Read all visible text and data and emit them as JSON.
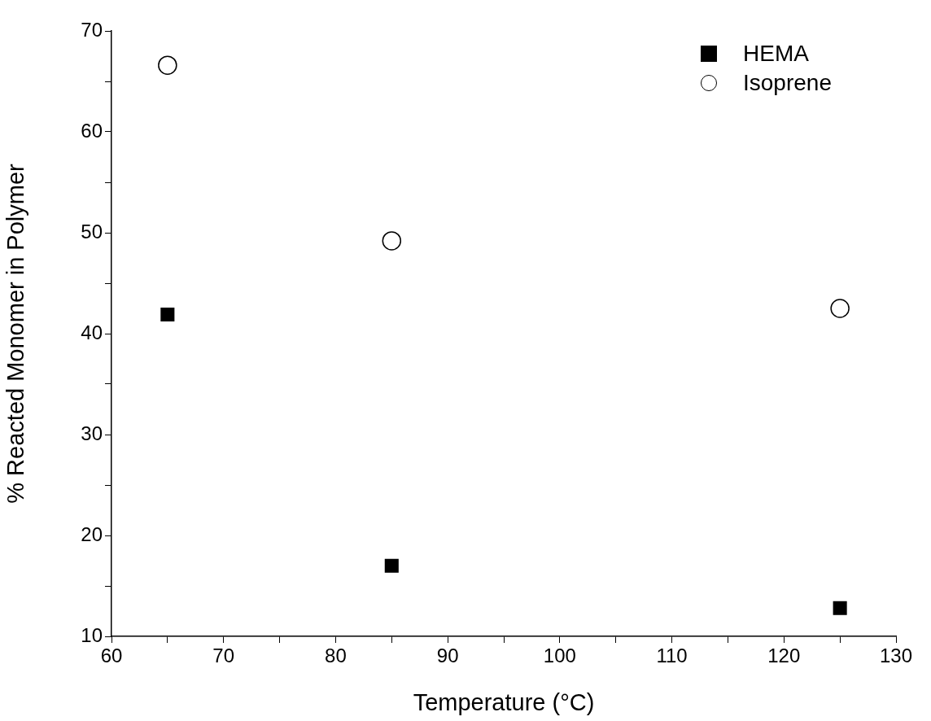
{
  "chart_data": {
    "type": "scatter",
    "xlabel": "Temperature (°C)",
    "ylabel": "% Reacted Monomer in Polymer",
    "x": [
      65,
      85,
      125
    ],
    "series": [
      {
        "name": "HEMA",
        "color": "#000000",
        "marker": "square",
        "values": [
          41.9,
          17,
          12.8
        ]
      },
      {
        "name": "Isoprene",
        "color": "#000000",
        "marker": "circle",
        "values": [
          66.6,
          49.2,
          42.5
        ]
      }
    ],
    "xlim": [
      60,
      130
    ],
    "xticks": [
      60,
      {
        "value": 65,
        "label": null
      },
      70,
      {
        "value": 75,
        "label": null
      },
      80,
      {
        "value": 85,
        "label": null
      },
      90,
      {
        "value": 95,
        "label": null
      },
      100,
      {
        "value": 105,
        "label": null
      },
      110,
      {
        "value": 115,
        "label": null
      },
      120,
      {
        "value": 125,
        "label": null
      },
      130
    ],
    "ylim": [
      10,
      70
    ],
    "yticks": [
      10,
      {
        "value": 15,
        "label": null
      },
      20,
      {
        "value": 25,
        "label": null
      },
      30,
      {
        "value": 35,
        "label": null
      },
      40,
      {
        "value": 45,
        "label": null
      },
      50,
      {
        "value": 55,
        "label": null
      },
      60,
      {
        "value": 65,
        "label": null
      },
      70
    ],
    "grid": false,
    "legend": "top right"
  }
}
